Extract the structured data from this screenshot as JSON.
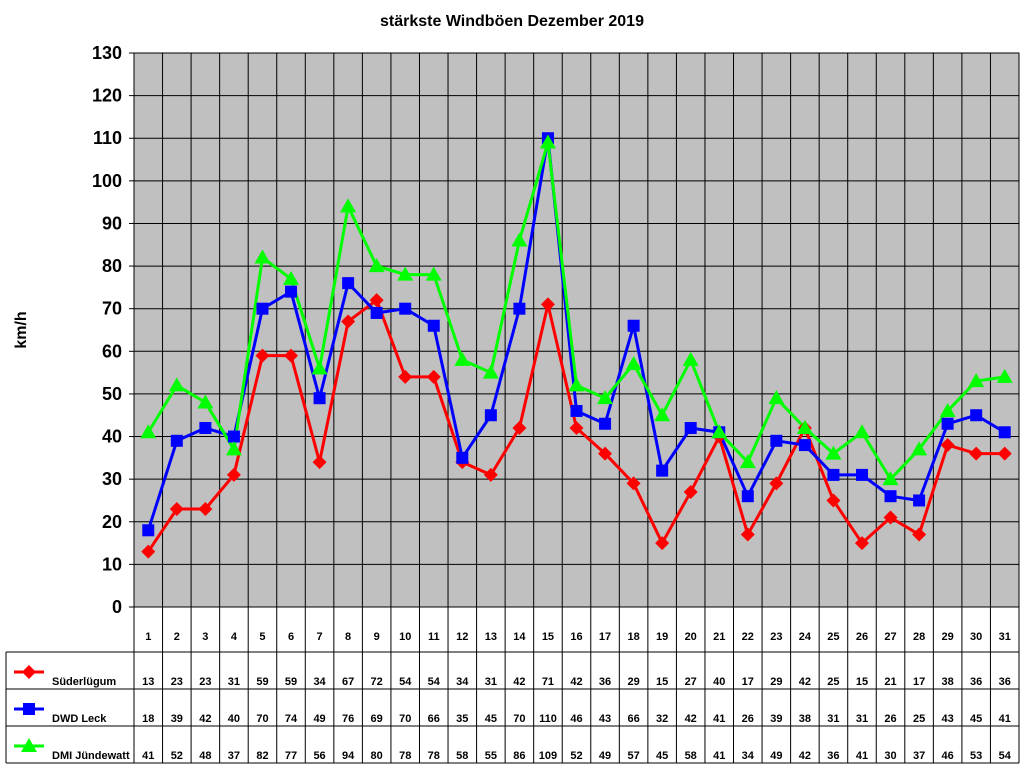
{
  "chart_data": {
    "type": "line",
    "title": "stärkste Windböen Dezember 2019",
    "xlabel": "",
    "ylabel": "km/h",
    "ylim": [
      0,
      130
    ],
    "yticks": [
      0,
      10,
      20,
      30,
      40,
      50,
      60,
      70,
      80,
      90,
      100,
      110,
      120,
      130
    ],
    "grid": true,
    "legend": "table-below",
    "categories": [
      "1",
      "2",
      "3",
      "4",
      "5",
      "6",
      "7",
      "8",
      "9",
      "10",
      "11",
      "12",
      "13",
      "14",
      "15",
      "16",
      "17",
      "18",
      "19",
      "20",
      "21",
      "22",
      "23",
      "24",
      "25",
      "26",
      "27",
      "28",
      "29",
      "30",
      "31"
    ],
    "series": [
      {
        "name": "Süderlügum",
        "color": "#ff0000",
        "marker": "diamond",
        "values": [
          13,
          23,
          23,
          31,
          59,
          59,
          34,
          67,
          72,
          54,
          54,
          34,
          31,
          42,
          71,
          42,
          36,
          29,
          15,
          27,
          40,
          17,
          29,
          42,
          25,
          15,
          21,
          17,
          38,
          36,
          36
        ],
        "labels": [
          "13",
          "23",
          "23",
          "31",
          "59",
          "59",
          "34",
          "67",
          "72",
          "54",
          "54",
          "34",
          "31",
          "42",
          "71",
          "42",
          "36",
          "29",
          "15",
          "27",
          "40",
          "17",
          "29",
          "42",
          "25",
          "15",
          "21",
          "17",
          "38",
          "36",
          "36"
        ]
      },
      {
        "name": "DWD Leck",
        "color": "#0000ff",
        "marker": "square",
        "values": [
          18,
          39,
          42,
          40,
          70,
          74,
          49,
          76,
          69,
          70,
          66,
          35,
          45,
          70,
          110,
          46,
          43,
          66,
          32,
          42,
          41,
          26,
          39,
          38,
          31,
          31,
          26,
          25,
          43,
          45,
          41
        ],
        "labels": [
          "18",
          "39",
          "42",
          "40",
          "70",
          "74",
          "49",
          "76",
          "69",
          "70",
          "66",
          "35",
          "45",
          "70",
          "110",
          "46",
          "43",
          "66",
          "32",
          "42",
          "41",
          "26",
          "39",
          "38",
          "31",
          "31",
          "26",
          "25",
          "43",
          "45",
          "41"
        ]
      },
      {
        "name": "DMI Jündewatt",
        "color": "#00ff00",
        "marker": "triangle",
        "values": [
          41,
          52,
          48,
          37,
          82,
          77,
          56,
          94,
          80,
          78,
          78,
          58,
          55,
          86,
          109,
          52,
          49,
          57,
          45,
          58,
          41,
          34,
          49,
          42,
          36,
          41,
          30,
          37,
          46,
          53,
          54
        ],
        "labels": [
          "41",
          "52",
          "48",
          "37",
          "82",
          "77",
          "56",
          "94",
          "80",
          "78",
          "78",
          "58",
          "55",
          "86",
          "109",
          "52",
          "49",
          "57",
          "45",
          "58",
          "41",
          "34",
          "49",
          "42",
          "36",
          "41",
          "30",
          "37",
          "46",
          "53",
          "54"
        ]
      }
    ]
  },
  "colors": {
    "plot_background": "#c0c0c0",
    "grid": "#000000"
  }
}
